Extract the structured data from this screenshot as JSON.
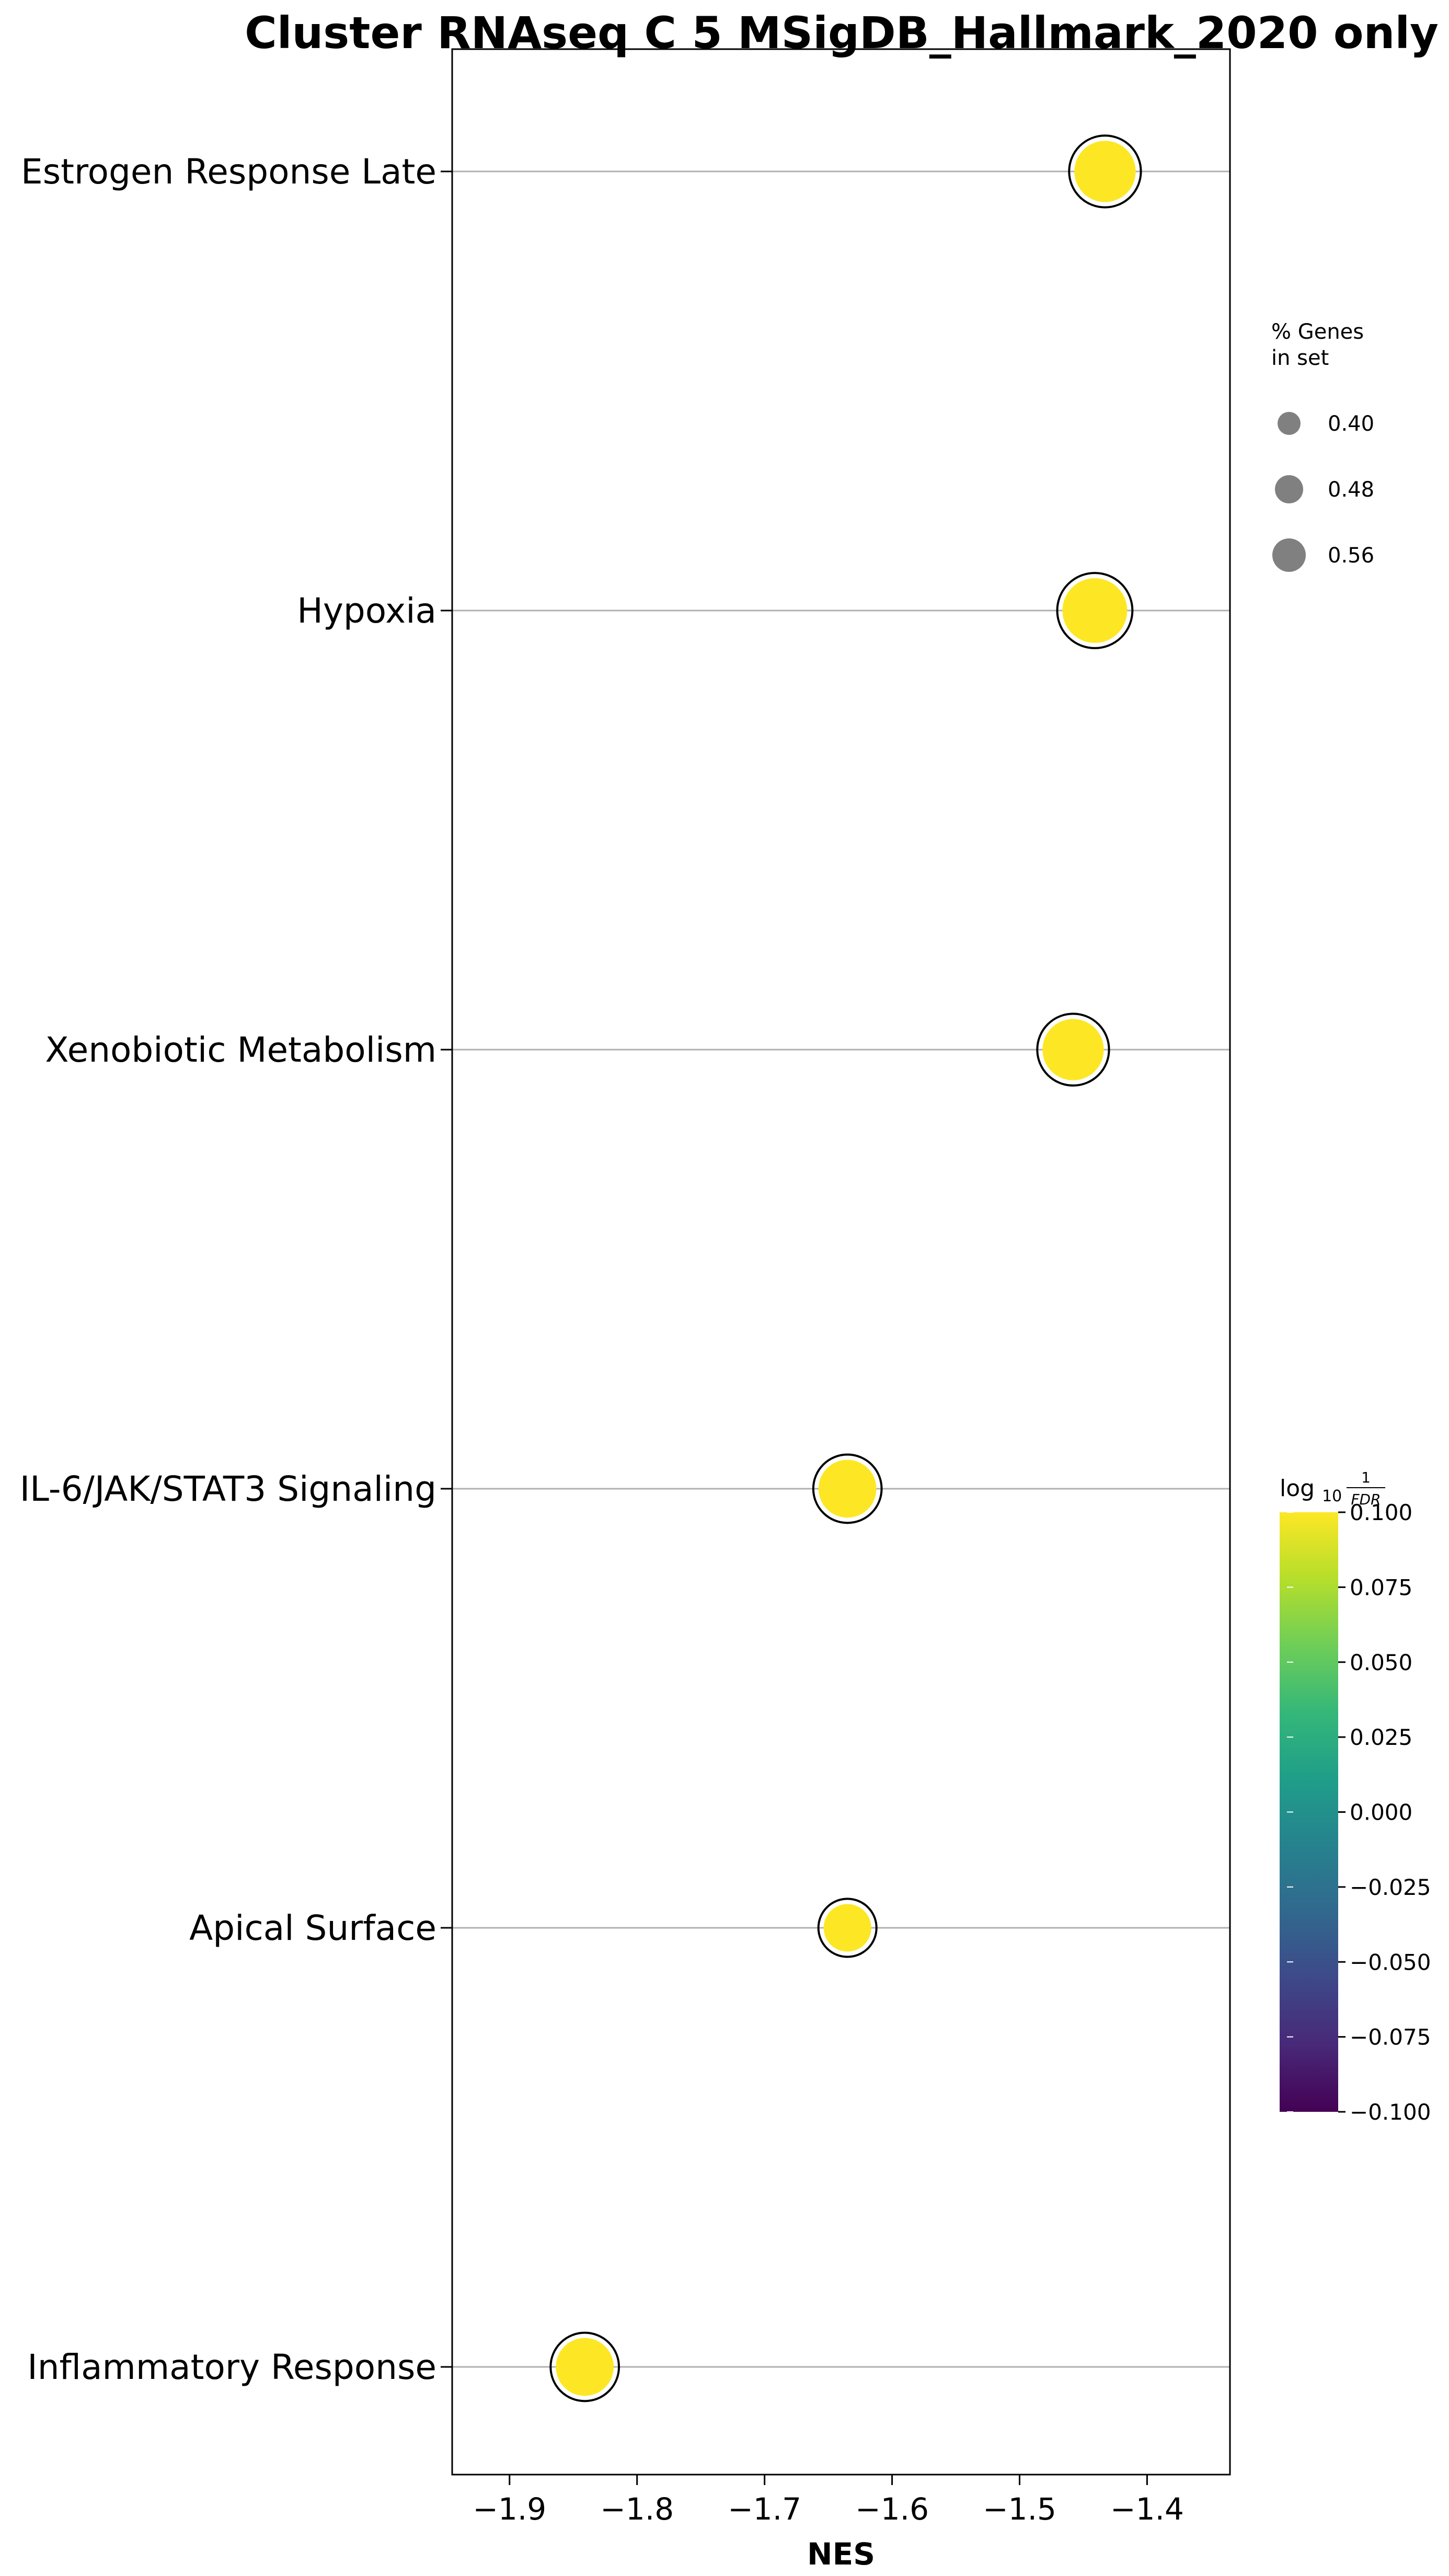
{
  "chart_data": {
    "type": "scatter",
    "title": "Cluster RNAseq C 5 MSigDB_Hallmark_2020 only",
    "xlabel": "NES",
    "ylabel": "",
    "xlim": [
      -1.945,
      -1.335
    ],
    "xticks": [
      -1.9,
      -1.8,
      -1.7,
      -1.6,
      -1.5,
      -1.4
    ],
    "xtick_labels": [
      "−1.9",
      "−1.8",
      "−1.7",
      "−1.6",
      "−1.5",
      "−1.4"
    ],
    "grid": "horizontal lines at each term",
    "categories": [
      "Estrogen Response Late",
      "Hypoxia",
      "Xenobiotic Metabolism",
      "IL-6/JAK/STAT3 Signaling",
      "Apical Surface",
      "Inflammatory Response"
    ],
    "points": [
      {
        "term": "Estrogen Response Late",
        "nes": -1.433,
        "pct_genes": 0.52,
        "log10_inv_fdr": 0.1
      },
      {
        "term": "Hypoxia",
        "nes": -1.441,
        "pct_genes": 0.56,
        "log10_inv_fdr": 0.1
      },
      {
        "term": "Xenobiotic Metabolism",
        "nes": -1.458,
        "pct_genes": 0.52,
        "log10_inv_fdr": 0.1
      },
      {
        "term": "IL-6/JAK/STAT3 Signaling",
        "nes": -1.635,
        "pct_genes": 0.48,
        "log10_inv_fdr": 0.1
      },
      {
        "term": "Apical Surface",
        "nes": -1.635,
        "pct_genes": 0.36,
        "log10_inv_fdr": 0.1
      },
      {
        "term": "Inflammatory Response",
        "nes": -1.841,
        "pct_genes": 0.48,
        "log10_inv_fdr": 0.1
      }
    ],
    "size_legend": {
      "title_line1": "% Genes",
      "title_line2": "in set",
      "entries": [
        {
          "label": "0.40",
          "value": 0.4
        },
        {
          "label": "0.48",
          "value": 0.48
        },
        {
          "label": "0.56",
          "value": 0.56
        }
      ],
      "marker_color": "#808080",
      "placement": "right"
    },
    "colorbar": {
      "title": "log10 1/FDR",
      "title_main": "log",
      "title_sub": "10",
      "title_num": "1",
      "title_den": "FDR",
      "colormap": "viridis",
      "range": [
        -0.1,
        0.1
      ],
      "ticks": [
        {
          "value": 0.1,
          "label": "0.100"
        },
        {
          "value": 0.075,
          "label": "0.075"
        },
        {
          "value": 0.05,
          "label": "0.050"
        },
        {
          "value": 0.025,
          "label": "0.025"
        },
        {
          "value": 0.0,
          "label": "0.000"
        },
        {
          "value": -0.025,
          "label": "−0.025"
        },
        {
          "value": -0.05,
          "label": "−0.050"
        },
        {
          "value": -0.075,
          "label": "−0.075"
        },
        {
          "value": -0.1,
          "label": "−0.100"
        }
      ]
    },
    "colors": {
      "point_fill": "#fde725",
      "point_ring": "#000000",
      "grid_line": "#b0b0b0",
      "viridis_stops": [
        "#440154",
        "#482878",
        "#3e4989",
        "#31688e",
        "#26828e",
        "#1f9e89",
        "#35b779",
        "#6ece58",
        "#b5de2b",
        "#fde725"
      ]
    }
  }
}
